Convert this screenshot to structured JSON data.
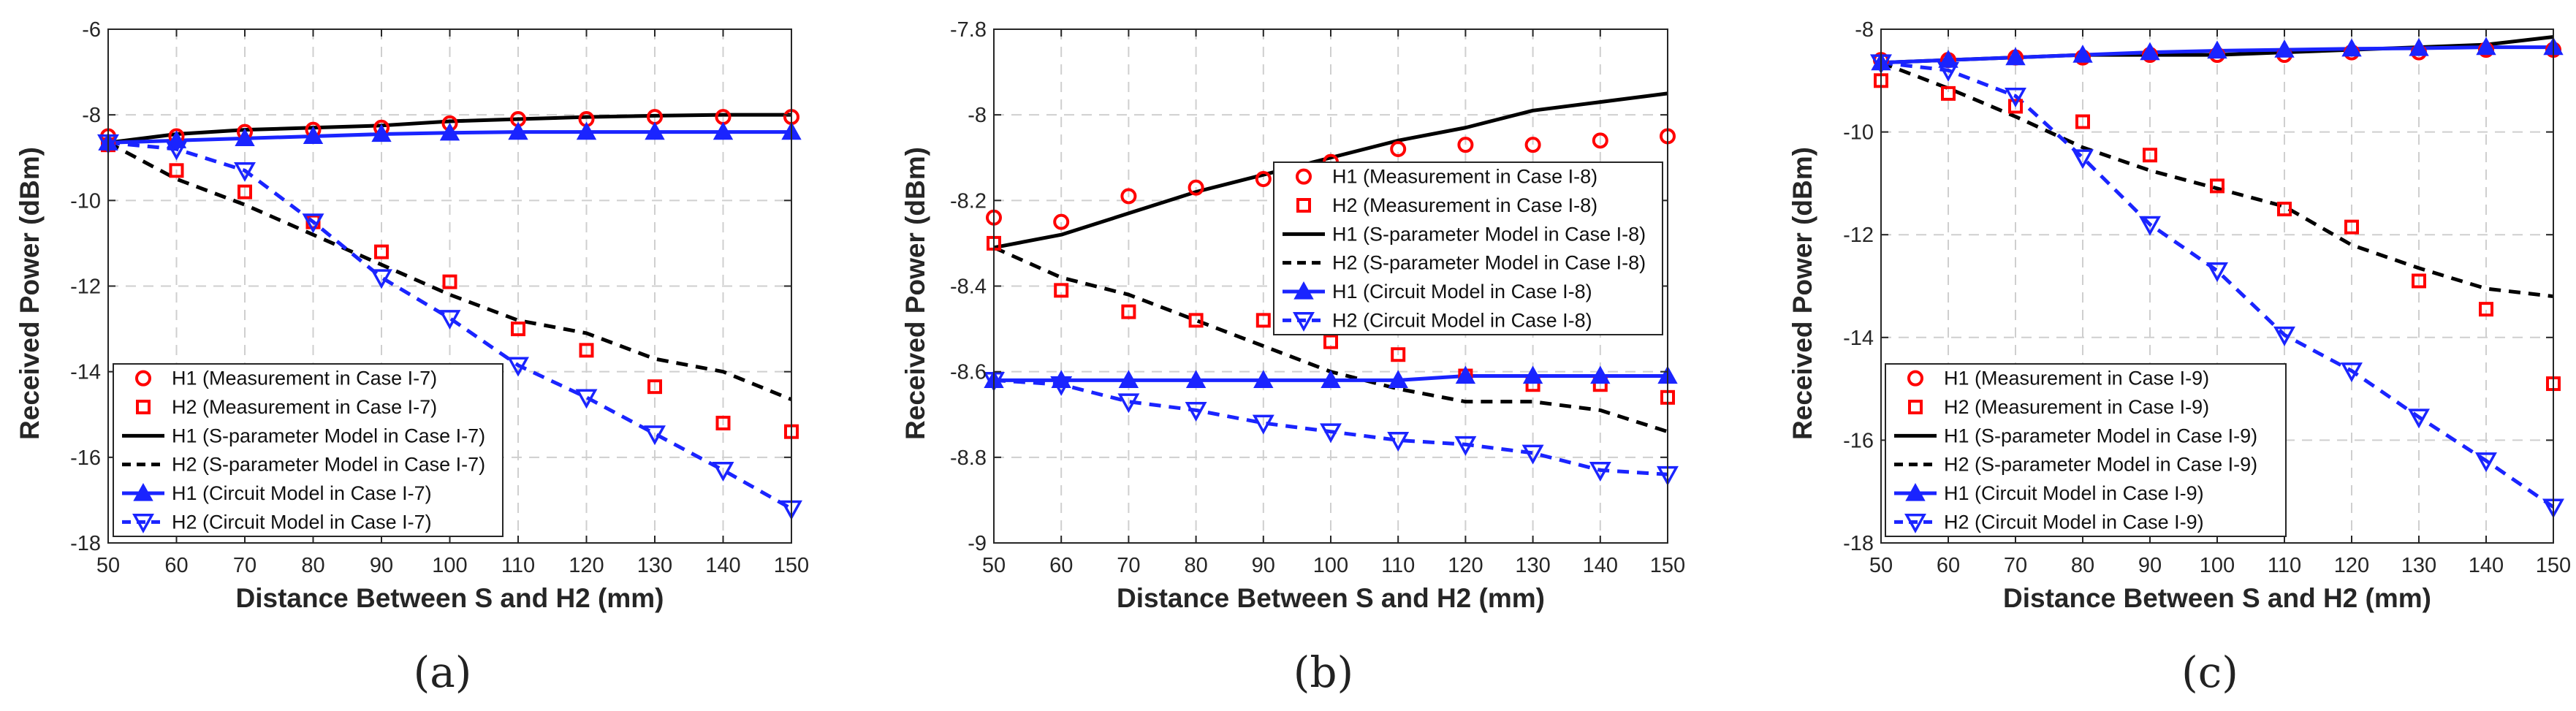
{
  "colors": {
    "h1": "#ff0000",
    "h2": "#ff0000",
    "black": "#000000",
    "blue": "#1a24ff",
    "grid": "#cfcfcf"
  },
  "chart_data": [
    {
      "type": "line",
      "panel_label": "(a)",
      "xlabel": "Distance Between S and H2 (mm)",
      "ylabel": "Received Power (dBm)",
      "xlim": [
        50,
        150
      ],
      "ylim": [
        -18,
        -6
      ],
      "xticks": [
        "50",
        "60",
        "70",
        "80",
        "90",
        "100",
        "110",
        "120",
        "130",
        "140",
        "150"
      ],
      "yticks": [
        "-18",
        "-16",
        "-14",
        "-12",
        "-10",
        "-8",
        "-6"
      ],
      "legend_position": "bottom-left",
      "x": [
        50,
        60,
        70,
        80,
        90,
        100,
        110,
        120,
        130,
        140,
        150
      ],
      "series": [
        {
          "name": "H1 (Measurement in Case I-7)",
          "style": "circle",
          "values": [
            -8.5,
            -8.5,
            -8.4,
            -8.35,
            -8.3,
            -8.2,
            -8.1,
            -8.1,
            -8.05,
            -8.05,
            -8.05
          ]
        },
        {
          "name": "H2 (Measurement in Case I-7)",
          "style": "square",
          "values": [
            -8.7,
            -9.3,
            -9.8,
            -10.5,
            -11.2,
            -11.9,
            -13.0,
            -13.5,
            -14.35,
            -15.2,
            -15.4
          ]
        },
        {
          "name": "H1 (S-parameter Model in Case I-7)",
          "style": "solid-black",
          "values": [
            -8.65,
            -8.45,
            -8.35,
            -8.3,
            -8.25,
            -8.15,
            -8.1,
            -8.05,
            -8.02,
            -8.0,
            -8.0
          ]
        },
        {
          "name": "H2 (S-parameter Model in Case I-7)",
          "style": "dashed-black",
          "values": [
            -8.65,
            -9.5,
            -10.1,
            -10.8,
            -11.5,
            -12.2,
            -12.8,
            -13.1,
            -13.7,
            -14.0,
            -14.65
          ]
        },
        {
          "name": "H1 (Circuit Model in Case I-7)",
          "style": "solid-blue-up",
          "values": [
            -8.65,
            -8.6,
            -8.55,
            -8.5,
            -8.45,
            -8.42,
            -8.4,
            -8.4,
            -8.4,
            -8.4,
            -8.4
          ]
        },
        {
          "name": "H2 (Circuit Model in Case I-7)",
          "style": "dashed-blue-down",
          "values": [
            -8.65,
            -8.8,
            -9.3,
            -10.5,
            -11.8,
            -12.75,
            -13.85,
            -14.6,
            -15.45,
            -16.3,
            -17.2
          ]
        }
      ]
    },
    {
      "type": "line",
      "panel_label": "(b)",
      "xlabel": "Distance Between S and H2 (mm)",
      "ylabel": "Received Power (dBm)",
      "xlim": [
        50,
        150
      ],
      "ylim": [
        -9,
        -7.8
      ],
      "xticks": [
        "50",
        "60",
        "70",
        "80",
        "90",
        "100",
        "110",
        "120",
        "130",
        "140",
        "150"
      ],
      "yticks": [
        "-9",
        "-8.8",
        "-8.6",
        "-8.4",
        "-8.2",
        "-8",
        "-7.8"
      ],
      "legend_position": "center-right",
      "x": [
        50,
        60,
        70,
        80,
        90,
        100,
        110,
        120,
        130,
        140,
        150
      ],
      "series": [
        {
          "name": "H1 (Measurement in Case I-8)",
          "style": "circle",
          "values": [
            -8.24,
            -8.25,
            -8.19,
            -8.17,
            -8.15,
            -8.11,
            -8.08,
            -8.07,
            -8.07,
            -8.06,
            -8.05
          ]
        },
        {
          "name": "H2 (Measurement in Case I-8)",
          "style": "square",
          "values": [
            -8.3,
            -8.41,
            -8.46,
            -8.48,
            -8.48,
            -8.53,
            -8.56,
            -8.61,
            -8.63,
            -8.63,
            -8.66
          ]
        },
        {
          "name": "H1 (S-parameter Model in Case I-8)",
          "style": "solid-black",
          "values": [
            -8.31,
            -8.28,
            -8.23,
            -8.18,
            -8.14,
            -8.1,
            -8.06,
            -8.03,
            -7.99,
            -7.97,
            -7.95
          ]
        },
        {
          "name": "H2 (S-parameter Model in Case I-8)",
          "style": "dashed-black",
          "values": [
            -8.31,
            -8.38,
            -8.42,
            -8.48,
            -8.54,
            -8.6,
            -8.64,
            -8.67,
            -8.67,
            -8.69,
            -8.74
          ]
        },
        {
          "name": "H1 (Circuit Model in Case I-8)",
          "style": "solid-blue-up",
          "values": [
            -8.62,
            -8.62,
            -8.62,
            -8.62,
            -8.62,
            -8.62,
            -8.62,
            -8.61,
            -8.61,
            -8.61,
            -8.61
          ]
        },
        {
          "name": "H2 (Circuit Model in Case I-8)",
          "style": "dashed-blue-down",
          "values": [
            -8.62,
            -8.63,
            -8.67,
            -8.69,
            -8.72,
            -8.74,
            -8.76,
            -8.77,
            -8.79,
            -8.83,
            -8.84
          ]
        }
      ]
    },
    {
      "type": "line",
      "panel_label": "(c)",
      "xlabel": "Distance Between S and H2 (mm)",
      "ylabel": "Received Power (dBm)",
      "xlim": [
        50,
        150
      ],
      "ylim": [
        -18,
        -8
      ],
      "xticks": [
        "50",
        "60",
        "70",
        "80",
        "90",
        "100",
        "110",
        "120",
        "130",
        "140",
        "150"
      ],
      "yticks": [
        "-18",
        "-16",
        "-14",
        "-12",
        "-10",
        "-8"
      ],
      "legend_position": "bottom-left",
      "x": [
        50,
        60,
        70,
        80,
        90,
        100,
        110,
        120,
        130,
        140,
        150
      ],
      "series": [
        {
          "name": "H1 (Measurement in Case I-9)",
          "style": "circle",
          "values": [
            -8.6,
            -8.6,
            -8.55,
            -8.55,
            -8.5,
            -8.5,
            -8.5,
            -8.45,
            -8.45,
            -8.4,
            -8.4
          ]
        },
        {
          "name": "H2 (Measurement in Case I-9)",
          "style": "square",
          "values": [
            -9.0,
            -9.25,
            -9.5,
            -9.8,
            -10.45,
            -11.05,
            -11.5,
            -11.85,
            -12.9,
            -13.45,
            -14.9
          ]
        },
        {
          "name": "H1 (S-parameter Model in Case I-9)",
          "style": "solid-black",
          "values": [
            -8.65,
            -8.6,
            -8.55,
            -8.5,
            -8.5,
            -8.5,
            -8.45,
            -8.4,
            -8.35,
            -8.3,
            -8.15
          ]
        },
        {
          "name": "H2 (S-parameter Model in Case I-9)",
          "style": "dashed-black",
          "values": [
            -8.65,
            -9.15,
            -9.7,
            -10.3,
            -10.75,
            -11.1,
            -11.45,
            -12.2,
            -12.65,
            -13.05,
            -13.2
          ]
        },
        {
          "name": "H1 (Circuit Model in Case I-9)",
          "style": "solid-blue-up",
          "values": [
            -8.65,
            -8.6,
            -8.55,
            -8.5,
            -8.45,
            -8.42,
            -8.4,
            -8.38,
            -8.37,
            -8.35,
            -8.35
          ]
        },
        {
          "name": "H2 (Circuit Model in Case I-9)",
          "style": "dashed-blue-down",
          "values": [
            -8.65,
            -8.8,
            -9.3,
            -10.5,
            -11.8,
            -12.7,
            -13.95,
            -14.65,
            -15.55,
            -16.4,
            -17.3
          ]
        }
      ]
    }
  ]
}
